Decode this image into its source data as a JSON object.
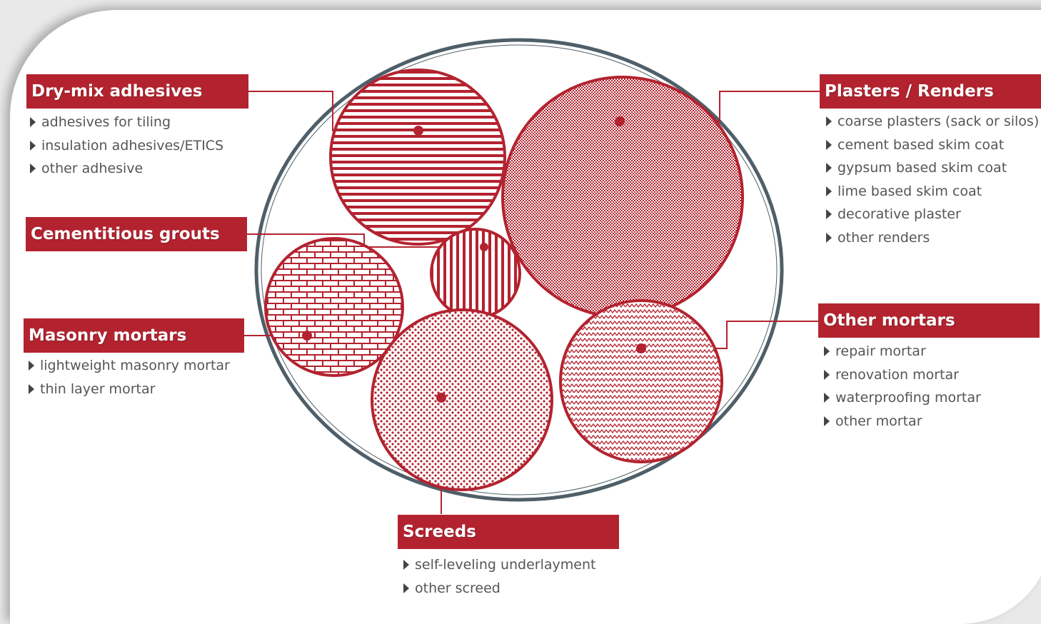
{
  "categories": [
    {
      "id": "dry_mix",
      "title": "Dry-mix adhesives",
      "items": [
        "adhesives for tiling",
        "insulation adhesives/ETICS",
        "other adhesive"
      ]
    },
    {
      "id": "grouts",
      "title": "Cementitious grouts",
      "items": []
    },
    {
      "id": "masonry",
      "title": "Masonry mortars",
      "items": [
        "lightweight masonry mortar",
        "thin layer mortar"
      ]
    },
    {
      "id": "plasters",
      "title": "Plasters / Renders",
      "items": [
        "coarse plasters (sack or silos)",
        "cement based skim coat",
        "gypsum based skim coat",
        "lime based skim coat",
        "decorative plaster",
        "other renders"
      ]
    },
    {
      "id": "other_mortars",
      "title": "Other mortars",
      "items": [
        "repair mortar",
        "renovation mortar",
        "waterproofing mortar",
        "other mortar"
      ]
    },
    {
      "id": "screeds",
      "title": "Screeds",
      "items": [
        "self-leveling underlayment",
        "other screed"
      ]
    }
  ],
  "colors": {
    "accent": "#b3232f",
    "outer_ring": "#4f5f69",
    "text": "#555555",
    "arrow": "#444444"
  }
}
